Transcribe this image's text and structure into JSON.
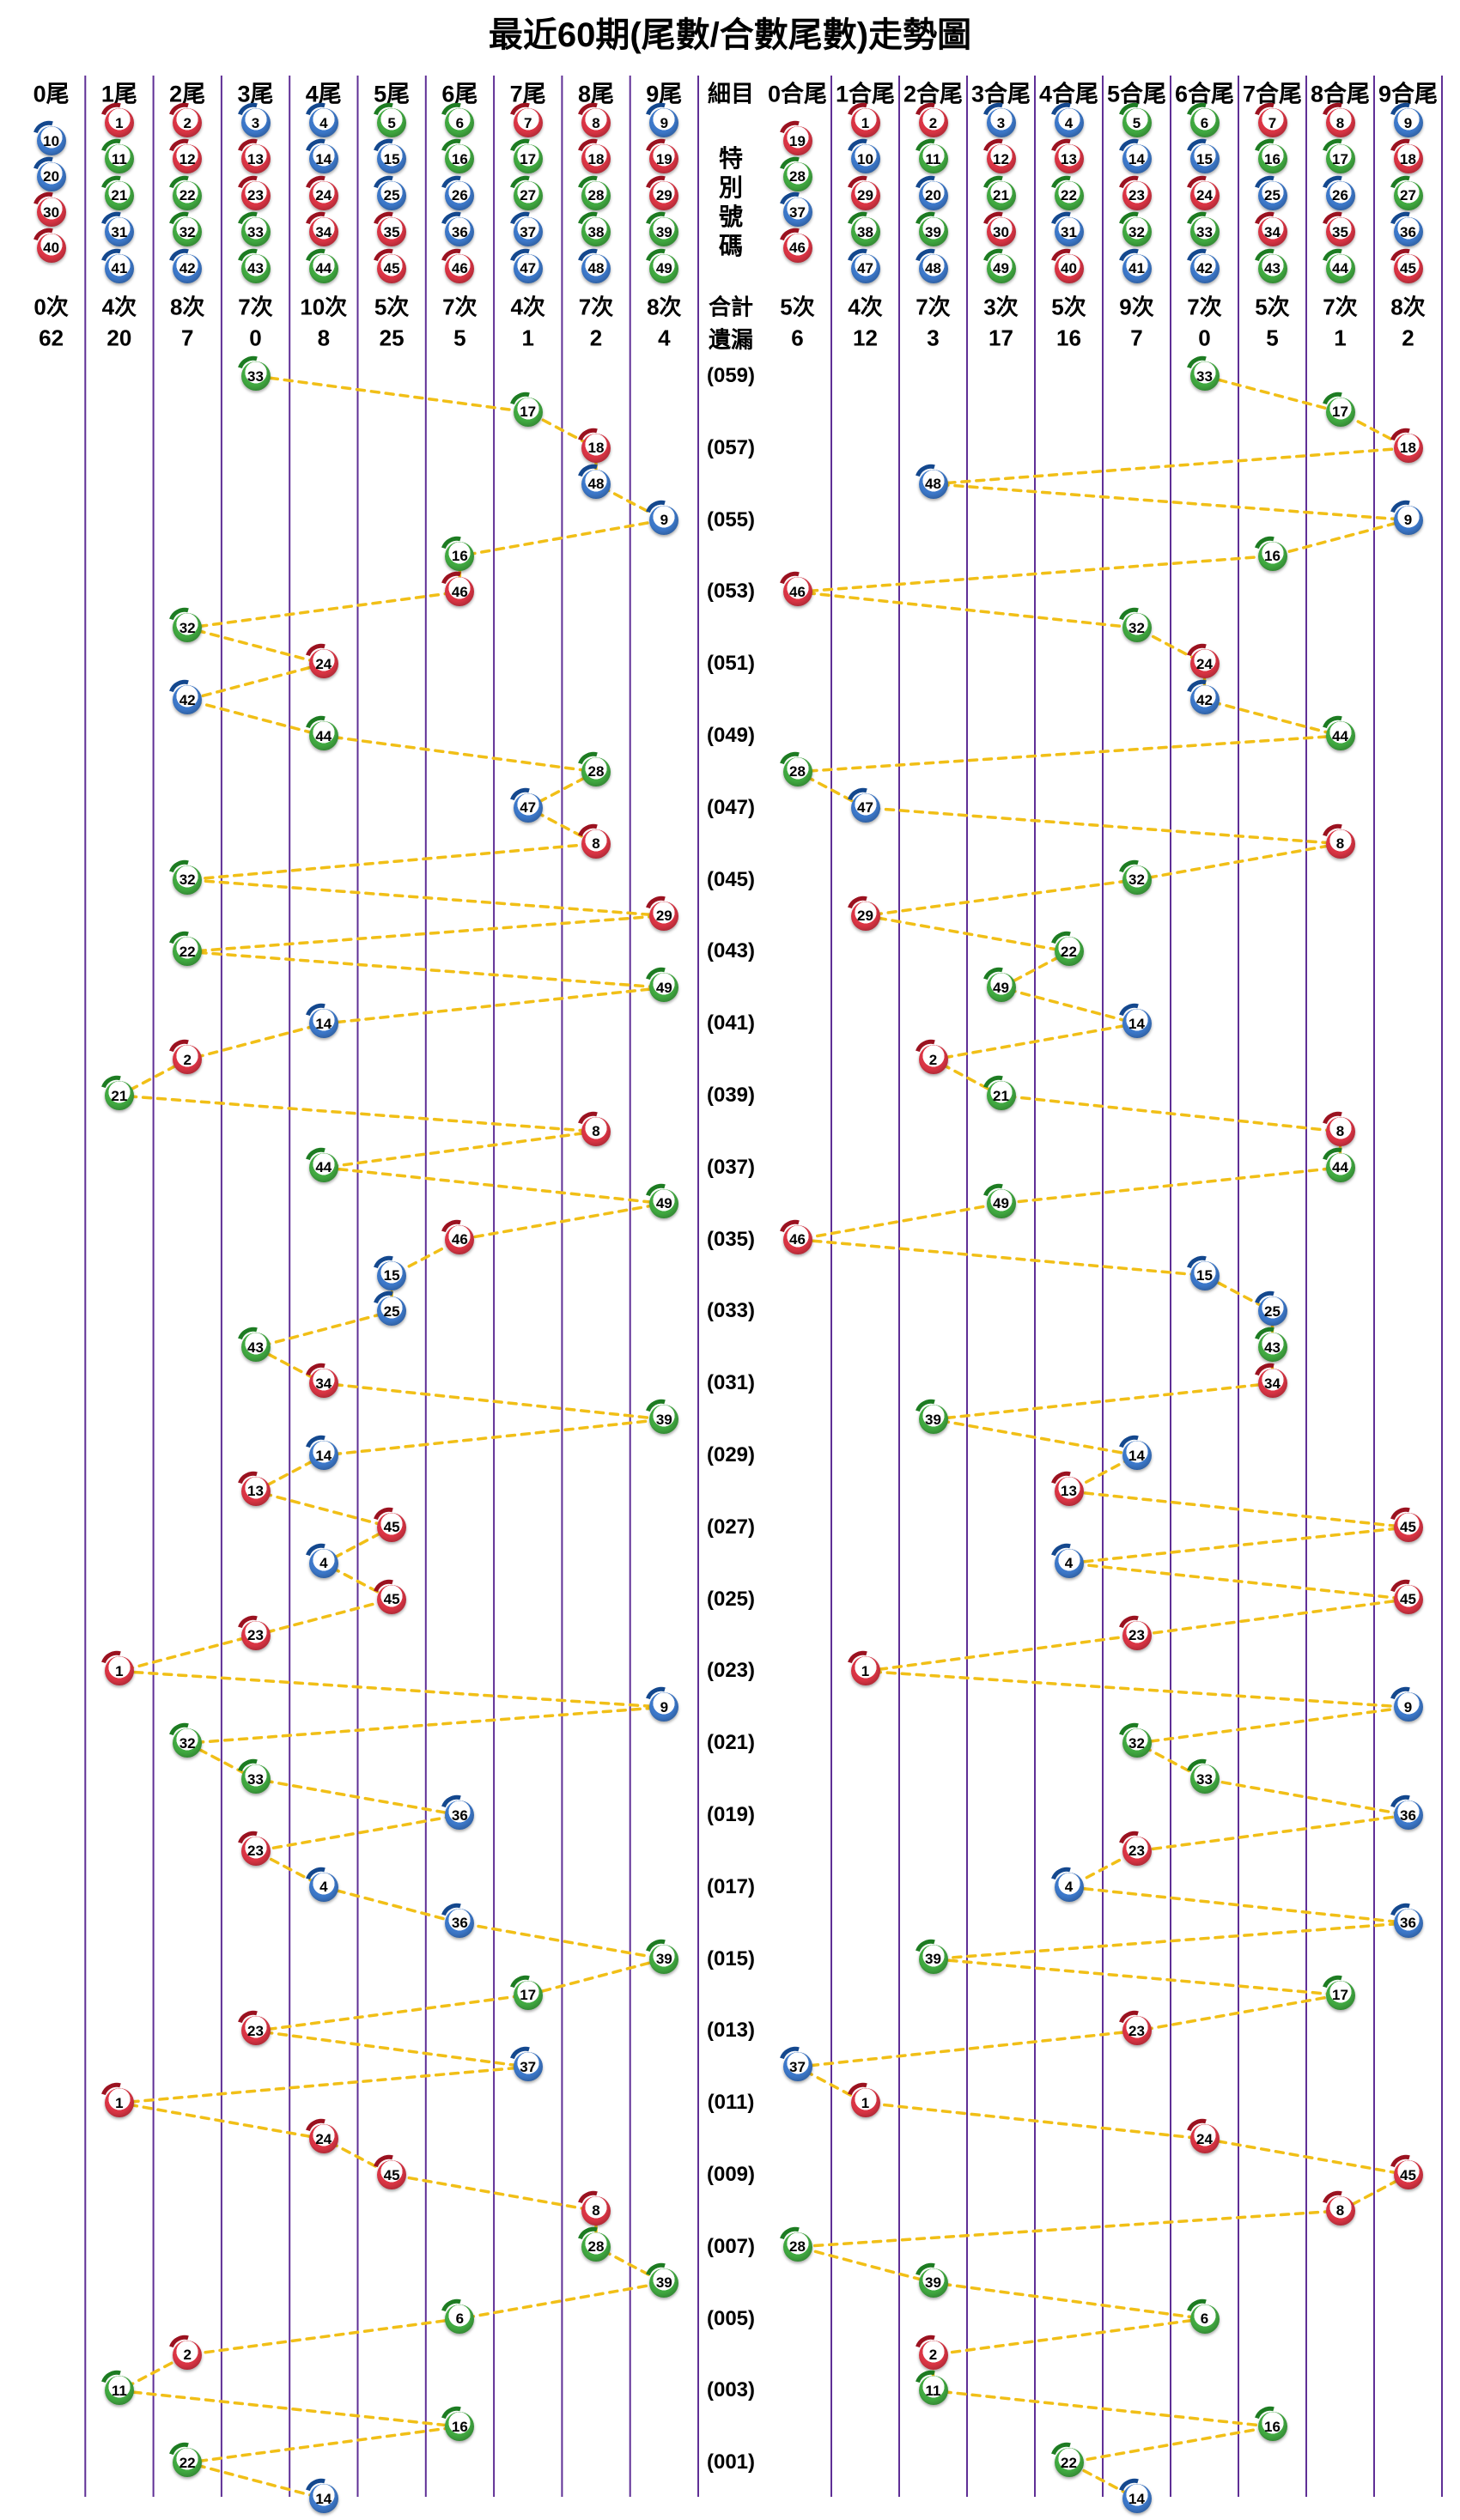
{
  "title": "最近60期(尾數/合數尾數)走勢圖",
  "middle_column": {
    "header": "細目",
    "special_number_label": [
      "特",
      "別",
      "號",
      "碼"
    ],
    "total_label": "合計",
    "miss_label": "遺漏",
    "period_labels": [
      "(059)",
      "(057)",
      "(055)",
      "(053)",
      "(051)",
      "(049)",
      "(047)",
      "(045)",
      "(043)",
      "(041)",
      "(039)",
      "(037)",
      "(035)",
      "(033)",
      "(031)",
      "(029)",
      "(027)",
      "(025)",
      "(023)",
      "(021)",
      "(019)",
      "(017)",
      "(015)",
      "(013)",
      "(011)",
      "(009)",
      "(007)",
      "(005)",
      "(003)",
      "(001)"
    ]
  },
  "tail_section": {
    "headers": [
      "0尾",
      "1尾",
      "2尾",
      "3尾",
      "4尾",
      "5尾",
      "6尾",
      "7尾",
      "8尾",
      "9尾"
    ],
    "column_balls": [
      [
        10,
        20,
        30,
        40
      ],
      [
        1,
        11,
        21,
        31,
        41
      ],
      [
        2,
        12,
        22,
        32,
        42
      ],
      [
        3,
        13,
        23,
        33,
        43
      ],
      [
        4,
        14,
        24,
        34,
        44
      ],
      [
        5,
        15,
        25,
        35,
        45
      ],
      [
        6,
        16,
        26,
        36,
        46
      ],
      [
        7,
        17,
        27,
        37,
        47
      ],
      [
        8,
        18,
        28,
        38,
        48
      ],
      [
        9,
        19,
        29,
        39,
        49
      ]
    ],
    "counts": [
      "0次",
      "4次",
      "8次",
      "7次",
      "10次",
      "5次",
      "7次",
      "4次",
      "7次",
      "8次"
    ],
    "misses": [
      "62",
      "20",
      "7",
      "0",
      "8",
      "25",
      "5",
      "1",
      "2",
      "4"
    ]
  },
  "sum_tail_section": {
    "headers": [
      "0合尾",
      "1合尾",
      "2合尾",
      "3合尾",
      "4合尾",
      "5合尾",
      "6合尾",
      "7合尾",
      "8合尾",
      "9合尾"
    ],
    "column_balls": [
      [
        19,
        28,
        37,
        46
      ],
      [
        1,
        10,
        29,
        38,
        47
      ],
      [
        2,
        11,
        20,
        39,
        48
      ],
      [
        3,
        12,
        21,
        30,
        49
      ],
      [
        4,
        13,
        22,
        31,
        40
      ],
      [
        5,
        14,
        23,
        32,
        41
      ],
      [
        6,
        15,
        24,
        33,
        42
      ],
      [
        7,
        16,
        25,
        34,
        43
      ],
      [
        8,
        17,
        26,
        35,
        44
      ],
      [
        9,
        18,
        27,
        36,
        45
      ]
    ],
    "counts": [
      "5次",
      "4次",
      "7次",
      "3次",
      "5次",
      "9次",
      "7次",
      "5次",
      "7次",
      "8次"
    ],
    "misses": [
      "6",
      "12",
      "3",
      "17",
      "16",
      "7",
      "0",
      "5",
      "1",
      "2"
    ]
  },
  "chart_data": {
    "type": "scatter",
    "title": "最近60期(尾數/合數尾數)走勢圖",
    "rows_top_to_bottom": 60,
    "row_label_step": 2,
    "x_axis_left_categories": [
      "0尾",
      "1尾",
      "2尾",
      "3尾",
      "4尾",
      "5尾",
      "6尾",
      "7尾",
      "8尾",
      "9尾"
    ],
    "x_axis_right_categories": [
      "0合尾",
      "1合尾",
      "2合尾",
      "3合尾",
      "4合尾",
      "5合尾",
      "6合尾",
      "7合尾",
      "8合尾",
      "9合尾"
    ],
    "draws_top_to_bottom": [
      33,
      17,
      18,
      48,
      9,
      16,
      46,
      32,
      24,
      42,
      44,
      28,
      47,
      8,
      32,
      29,
      22,
      49,
      14,
      2,
      21,
      8,
      44,
      49,
      46,
      15,
      25,
      43,
      34,
      39,
      14,
      13,
      45,
      4,
      45,
      23,
      1,
      9,
      32,
      33,
      36,
      23,
      4,
      36,
      39,
      17,
      23,
      37,
      1,
      24,
      45,
      8,
      28,
      39,
      6,
      2,
      11,
      16,
      22,
      14
    ],
    "tails": [
      3,
      7,
      8,
      8,
      9,
      6,
      6,
      2,
      4,
      2,
      4,
      8,
      7,
      8,
      2,
      9,
      2,
      9,
      4,
      2,
      1,
      8,
      4,
      9,
      6,
      5,
      5,
      3,
      4,
      9,
      4,
      3,
      5,
      4,
      5,
      3,
      1,
      9,
      2,
      3,
      6,
      3,
      4,
      6,
      9,
      7,
      3,
      7,
      1,
      4,
      5,
      8,
      8,
      9,
      6,
      2,
      1,
      6,
      2,
      4
    ],
    "sum_tails": [
      6,
      8,
      9,
      2,
      9,
      7,
      0,
      5,
      6,
      6,
      8,
      0,
      1,
      8,
      5,
      1,
      4,
      3,
      5,
      2,
      3,
      8,
      8,
      3,
      0,
      6,
      7,
      7,
      7,
      2,
      5,
      4,
      9,
      4,
      9,
      5,
      1,
      9,
      5,
      6,
      9,
      5,
      4,
      9,
      2,
      8,
      5,
      0,
      1,
      6,
      9,
      8,
      0,
      2,
      6,
      2,
      2,
      7,
      4,
      5
    ]
  },
  "ball_color_groups": {
    "red": [
      1,
      2,
      7,
      8,
      12,
      13,
      18,
      19,
      23,
      24,
      29,
      30,
      34,
      35,
      40,
      45,
      46
    ],
    "blue": [
      3,
      4,
      9,
      10,
      14,
      15,
      20,
      25,
      26,
      31,
      36,
      37,
      41,
      42,
      47,
      48
    ],
    "green": [
      5,
      6,
      11,
      16,
      17,
      21,
      22,
      27,
      28,
      32,
      33,
      38,
      39,
      43,
      44,
      49
    ]
  },
  "colors": {
    "red": "#dc3545",
    "red_dark": "#9b1220",
    "blue": "#3d79cb",
    "blue_dark": "#14488e",
    "green": "#41aa41",
    "green_dark": "#1d7c22",
    "connector": "#f1bf17",
    "grid": "#5f2f96",
    "text": "#000000",
    "background": "#ffffff"
  }
}
